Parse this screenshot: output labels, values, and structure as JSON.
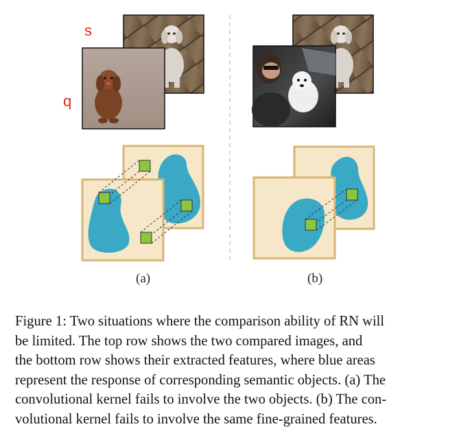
{
  "labels": {
    "support": "s",
    "query": "q"
  },
  "subcaptions": {
    "a": "(a)",
    "b": "(b)"
  },
  "caption": {
    "line1": "Figure 1: Two situations where the comparison ability of RN will",
    "line2": "be limited.  The top row shows the two compared images, and",
    "line3": "the bottom row shows their extracted features, where blue areas",
    "line4": "represent the response of corresponding semantic objects. (a) The",
    "line5": "convolutional kernel fails to involve the two objects. (b) The con-",
    "line6": "volutional kernel fails to involve the same fine-grained features."
  },
  "colors": {
    "feature_bg": "#f6e7c8",
    "feature_border": "#d9b477",
    "blob": "#39a9c6",
    "kernel": "#8cc63f",
    "label": "#e8231f"
  }
}
